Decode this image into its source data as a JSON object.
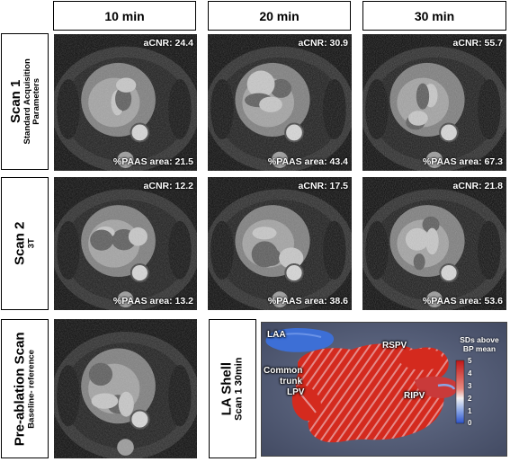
{
  "columns": [
    "10 min",
    "20 min",
    "30 min"
  ],
  "rows": [
    {
      "title": "Scan 1",
      "subtitle_lines": [
        "Standard Acquisition",
        "Parameters"
      ]
    },
    {
      "title": "Scan 2",
      "subtitle_lines": [
        "3T"
      ]
    },
    {
      "title": "Pre-ablation Scan",
      "subtitle_lines": [
        "Baseline- reference"
      ]
    }
  ],
  "scan1": [
    {
      "acnr": "aCNR: 24.4",
      "paas": "%PAAS area: 21.5"
    },
    {
      "acnr": "aCNR: 30.9",
      "paas": "%PAAS area: 43.4"
    },
    {
      "acnr": "aCNR: 55.7",
      "paas": "%PAAS area: 67.3"
    }
  ],
  "scan2": [
    {
      "acnr": "aCNR: 12.2",
      "paas": "%PAAS area: 13.2"
    },
    {
      "acnr": "aCNR: 17.5",
      "paas": "%PAAS area: 38.6"
    },
    {
      "acnr": "aCNR: 21.8",
      "paas": "%PAAS area: 53.6"
    }
  ],
  "la_shell": {
    "title": "LA Shell",
    "subtitle": "Scan 1 30min",
    "labels": {
      "laa": "LAA",
      "rspv": "RSPV",
      "common": "Common",
      "trunk": "trunk",
      "lpv": "LPV",
      "ripv": "RIPV"
    },
    "colorbar": {
      "title_line1": "SDs above",
      "title_line2": "BP mean",
      "ticks": [
        "5",
        "4",
        "3",
        "2",
        "1",
        "0"
      ]
    }
  },
  "colors": {
    "shell_bg": "#56607a",
    "hot": "#d42a1e",
    "cold": "#3d6fd6"
  }
}
